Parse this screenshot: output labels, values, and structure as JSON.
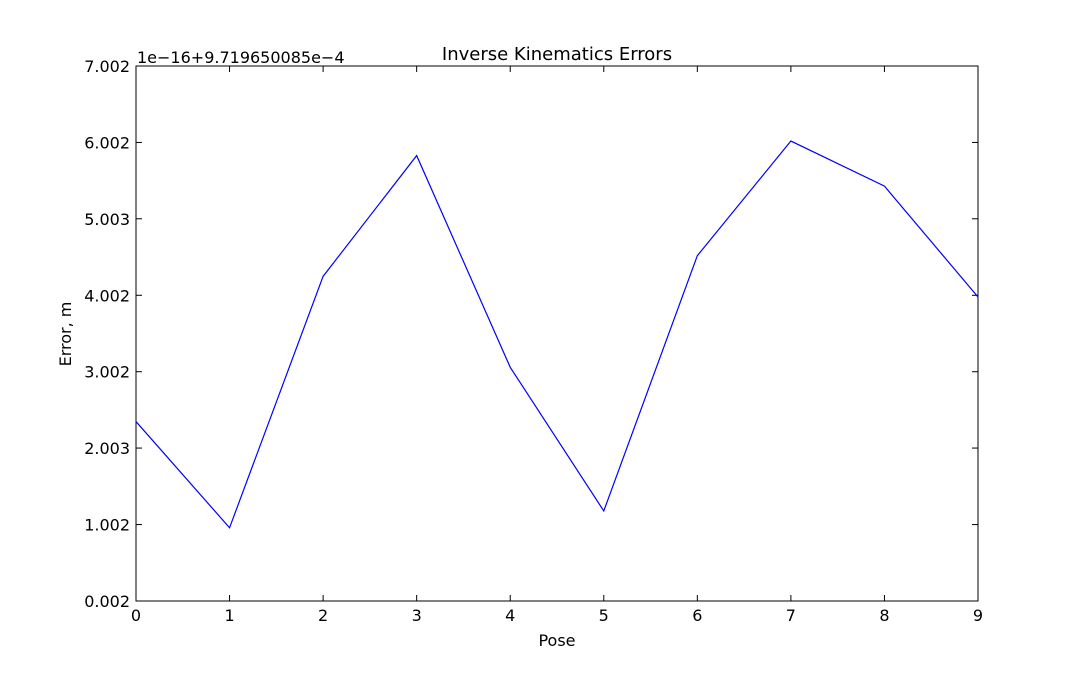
{
  "chart_data": {
    "type": "line",
    "title": "Inverse Kinematics Errors",
    "xlabel": "Pose",
    "ylabel": "Error, m",
    "offset_text": "1e−16+9.719650085e−4",
    "x": [
      0,
      1,
      2,
      3,
      4,
      5,
      6,
      7,
      8,
      9
    ],
    "x_ticks": [
      0,
      1,
      2,
      3,
      4,
      5,
      6,
      7,
      8,
      9
    ],
    "x_tick_labels": [
      "0",
      "1",
      "2",
      "3",
      "4",
      "5",
      "6",
      "7",
      "8",
      "9"
    ],
    "xlim": [
      0,
      9
    ],
    "y_ticks": [
      0.002,
      1.002,
      2.003,
      3.002,
      4.002,
      5.003,
      6.002,
      7.002
    ],
    "y_tick_labels": [
      "0.002",
      "1.002",
      "2.003",
      "3.002",
      "4.002",
      "5.003",
      "6.002",
      "7.002"
    ],
    "ylim": [
      0.002,
      7.002
    ],
    "series": [
      {
        "color": "#0000ff",
        "values": [
          2.35,
          0.96,
          4.25,
          5.83,
          3.06,
          1.18,
          4.52,
          6.02,
          5.43,
          3.98
        ]
      }
    ],
    "grid": false,
    "legend": "none"
  }
}
